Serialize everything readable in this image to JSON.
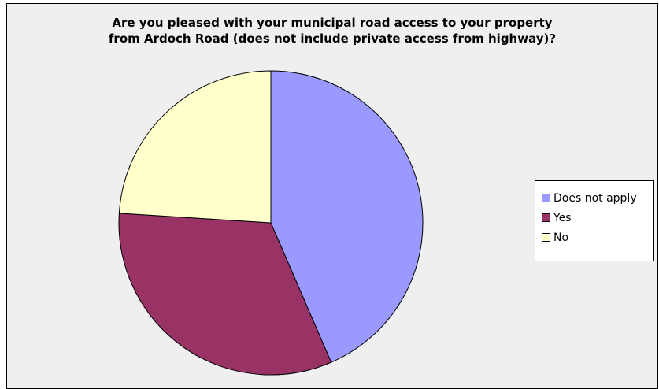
{
  "chart_data": {
    "type": "pie",
    "title": "Are you pleased with your municipal  road access to your property\nfrom Ardoch Road (does not include private access from highway)?",
    "categories": [
      "Does not apply",
      "Yes",
      "No"
    ],
    "values": [
      43.5,
      32.5,
      24.0
    ],
    "colors": [
      "#9999ff",
      "#993366",
      "#ffffcc"
    ],
    "start_angle_deg": 0,
    "direction": "clockwise",
    "legend_position": "right"
  }
}
